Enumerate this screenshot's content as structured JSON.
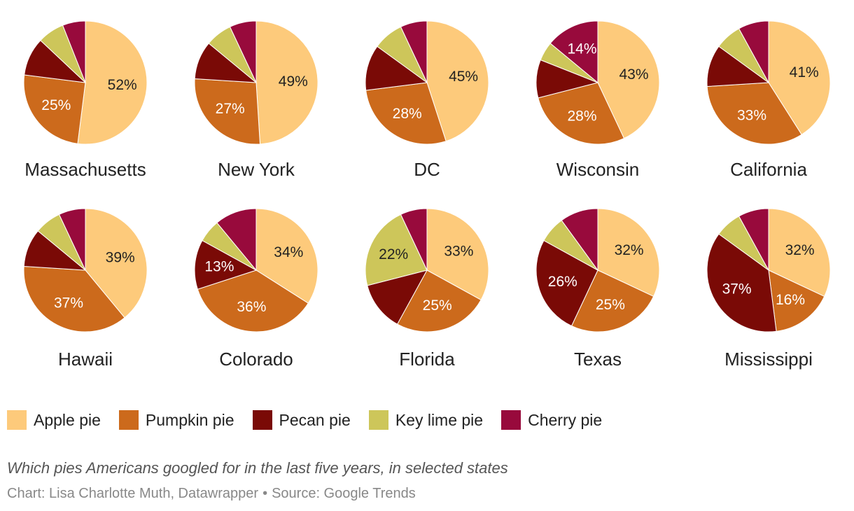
{
  "chart_data": {
    "type": "pie",
    "series_names": [
      "Apple pie",
      "Pumpkin pie",
      "Pecan pie",
      "Key lime pie",
      "Cherry pie"
    ],
    "colors": [
      "#fdca7b",
      "#cc6a1c",
      "#7a0a06",
      "#cdc65a",
      "#980a3c"
    ],
    "label_colors": [
      "#222222",
      "#ffffff",
      "#ffffff",
      "#222222",
      "#ffffff"
    ],
    "pies": [
      {
        "state": "Massachusetts",
        "values": [
          52,
          25,
          10,
          7,
          6
        ],
        "labels": [
          "52%",
          "25%",
          "",
          "",
          ""
        ]
      },
      {
        "state": "New York",
        "values": [
          49,
          27,
          10,
          7,
          7
        ],
        "labels": [
          "49%",
          "27%",
          "",
          "",
          ""
        ]
      },
      {
        "state": "DC",
        "values": [
          45,
          28,
          12,
          8,
          7
        ],
        "labels": [
          "45%",
          "28%",
          "",
          "",
          ""
        ]
      },
      {
        "state": "Wisconsin",
        "values": [
          43,
          28,
          10,
          5,
          14
        ],
        "labels": [
          "43%",
          "28%",
          "",
          "",
          "14%"
        ]
      },
      {
        "state": "California",
        "values": [
          41,
          33,
          11,
          7,
          8
        ],
        "labels": [
          "41%",
          "33%",
          "",
          "",
          ""
        ]
      },
      {
        "state": "Hawaii",
        "values": [
          39,
          37,
          10,
          7,
          7
        ],
        "labels": [
          "39%",
          "37%",
          "",
          "",
          ""
        ]
      },
      {
        "state": "Colorado",
        "values": [
          34,
          36,
          13,
          6,
          11
        ],
        "labels": [
          "34%",
          "36%",
          "13%",
          "",
          ""
        ]
      },
      {
        "state": "Florida",
        "values": [
          33,
          25,
          13,
          22,
          7
        ],
        "labels": [
          "33%",
          "25%",
          "",
          "22%",
          ""
        ]
      },
      {
        "state": "Texas",
        "values": [
          32,
          25,
          26,
          7,
          10
        ],
        "labels": [
          "32%",
          "25%",
          "26%",
          "",
          ""
        ]
      },
      {
        "state": "Mississippi",
        "values": [
          32,
          16,
          37,
          7,
          8
        ],
        "labels": [
          "32%",
          "16%",
          "37%",
          "",
          ""
        ]
      }
    ]
  },
  "legend": [
    {
      "label": "Apple pie",
      "color": "#fdca7b"
    },
    {
      "label": "Pumpkin pie",
      "color": "#cc6a1c"
    },
    {
      "label": "Pecan pie",
      "color": "#7a0a06"
    },
    {
      "label": "Key lime pie",
      "color": "#cdc65a"
    },
    {
      "label": "Cherry pie",
      "color": "#980a3c"
    }
  ],
  "caption": "Which pies Americans googled for in the last five years, in selected states",
  "credit": {
    "chart": "Chart: Lisa Charlotte Muth, Datawrapper",
    "separator": "•",
    "source": "Source: Google Trends"
  }
}
